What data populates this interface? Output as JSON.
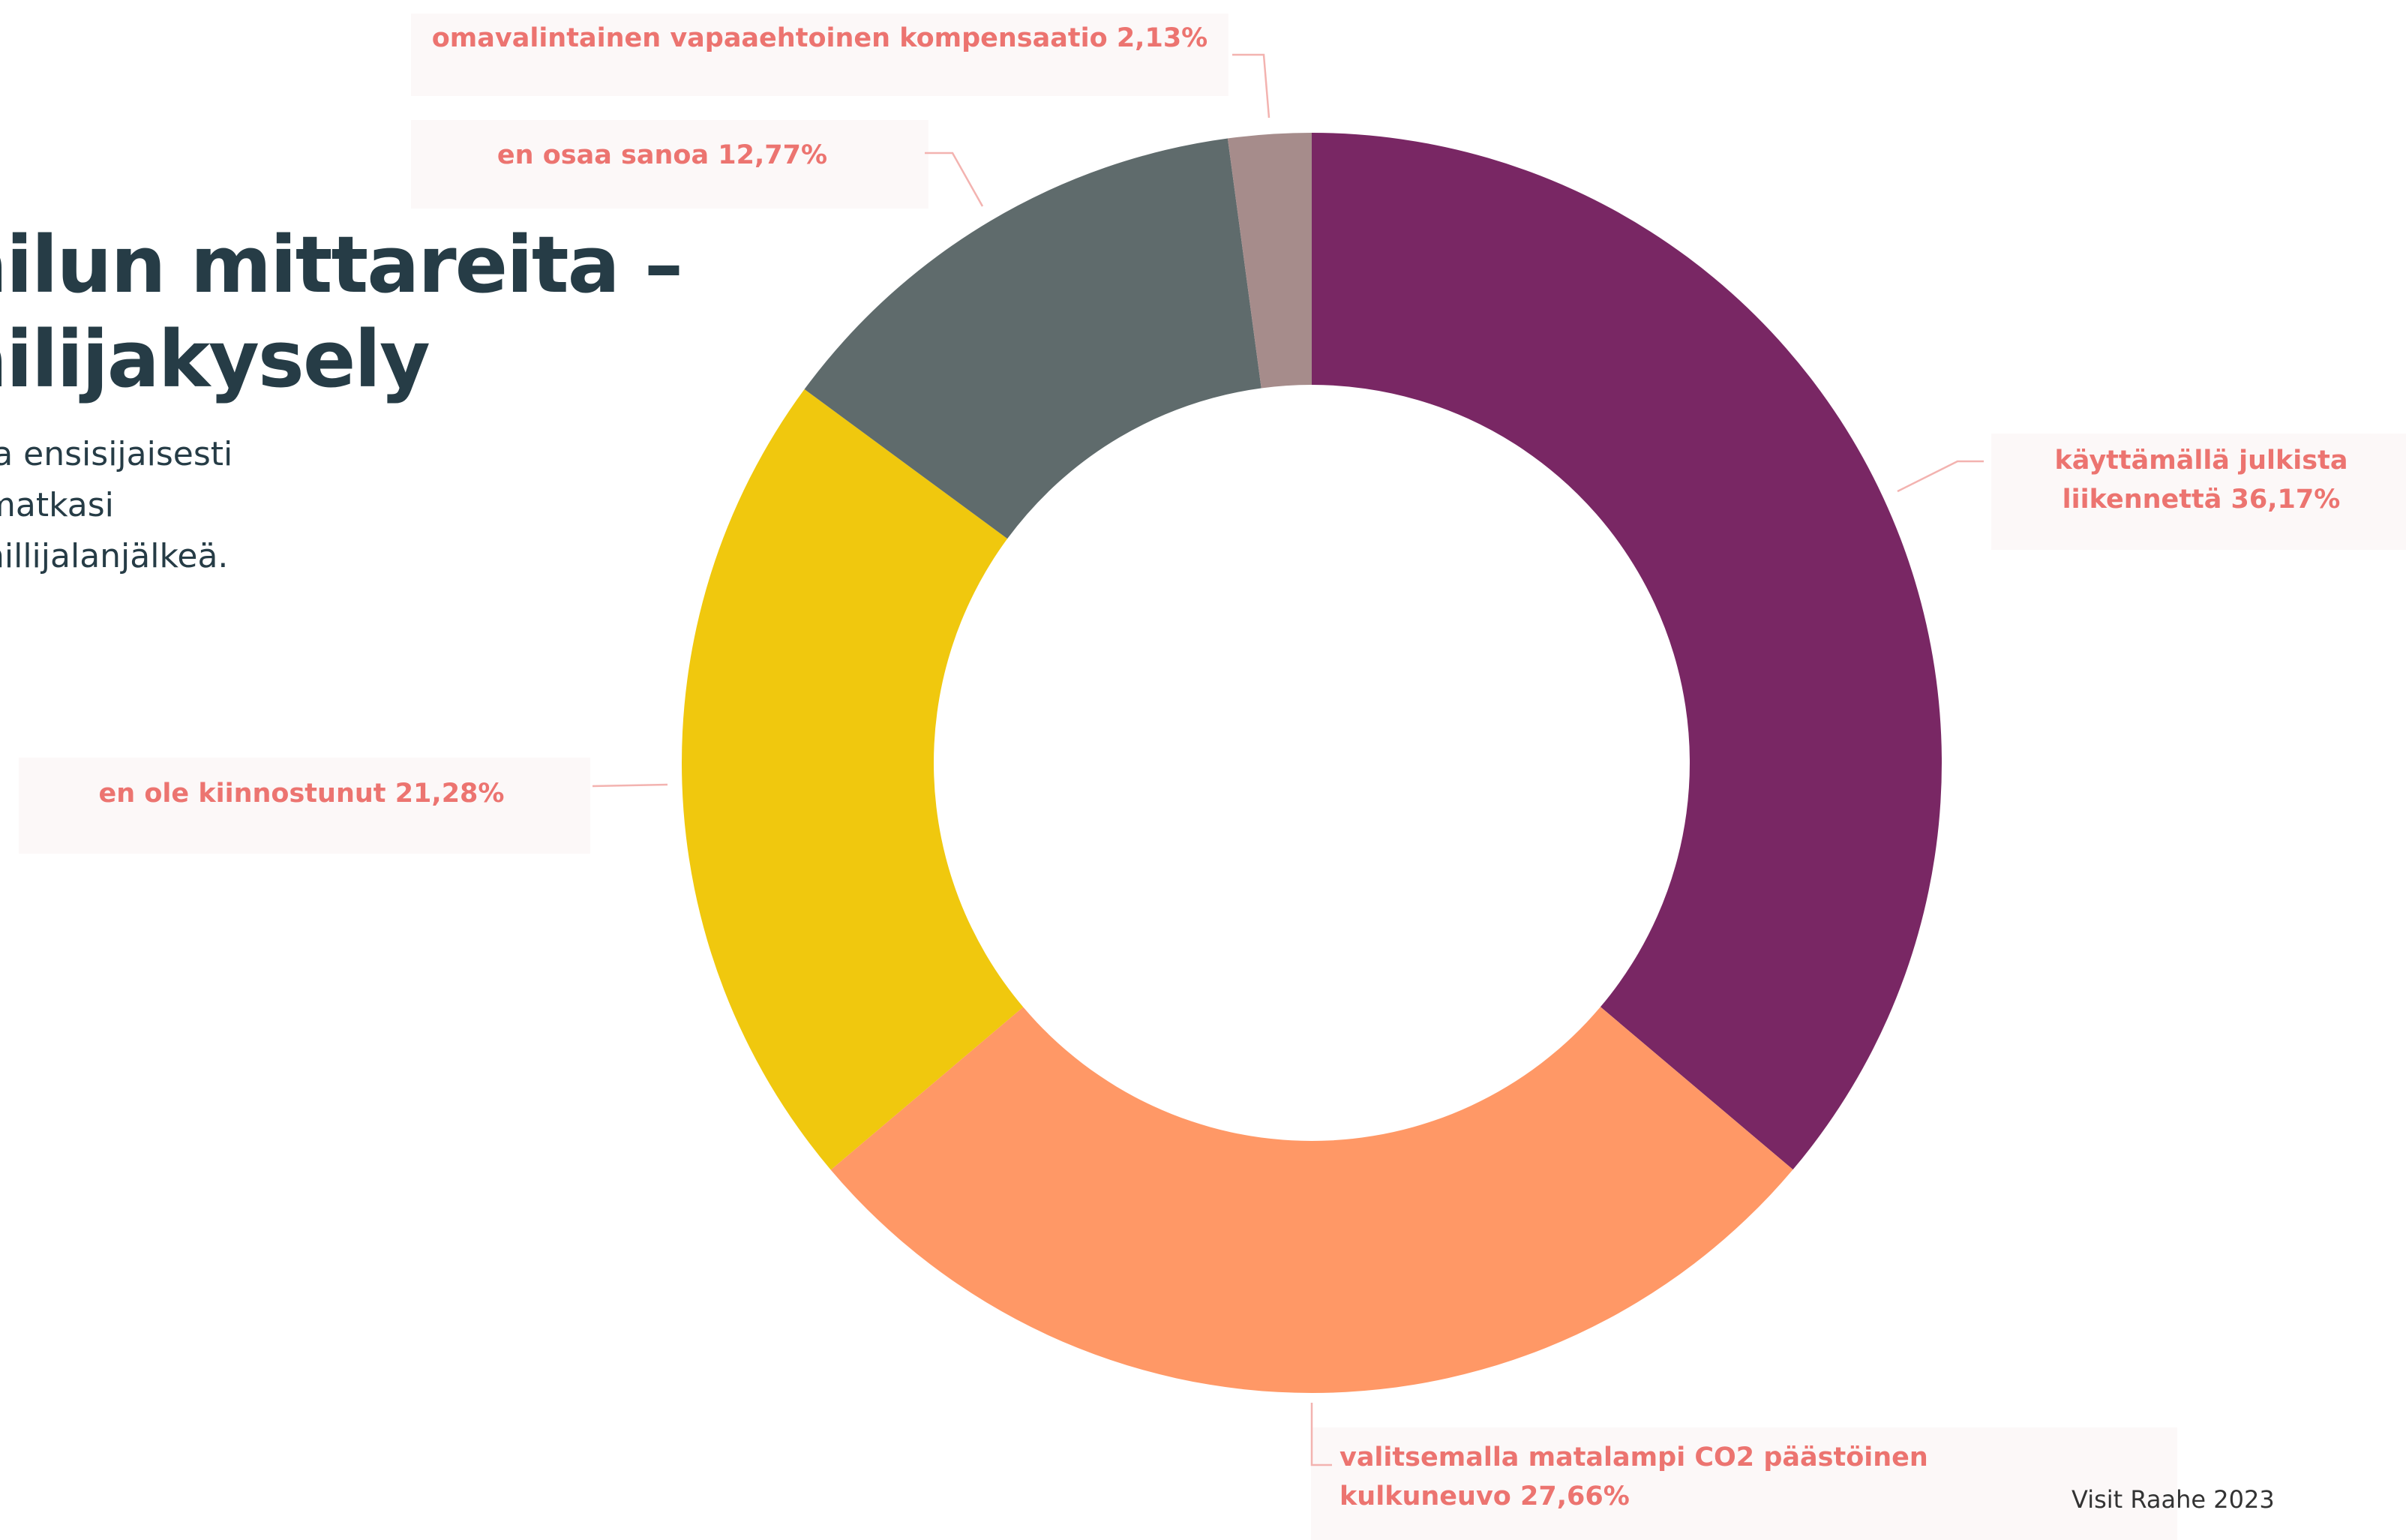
{
  "slide": {
    "title_lines": [
      "ailun mittareita –",
      "ailijakysely"
    ],
    "subtitle_lines": [
      "la ensisijaisesti",
      "matkasi",
      "hillijalanjälkeä."
    ],
    "footer": "Visit Raahe 2023"
  },
  "chart_data": {
    "type": "pie",
    "donut": true,
    "title": "",
    "start": "12 o'clock, clockwise",
    "slices": [
      {
        "label": "käyttämällä julkista liikennettä",
        "value": 36.17,
        "label_lines": [
          "käyttämällä julkista",
          "liikennettä 36,17%"
        ],
        "color": "#792764"
      },
      {
        "label": "valitsemalla matalampi CO2 päästöinen kulkuneuvo",
        "value": 27.66,
        "label_lines": [
          "valitsemalla matalampi CO2 päästöinen",
          "kulkuneuvo 27,66%"
        ],
        "color": "#ff9866"
      },
      {
        "label": "en ole kiinnostunut",
        "value": 21.28,
        "label_lines": [
          "en ole kiinnostunut 21,28%"
        ],
        "color": "#f0c80e"
      },
      {
        "label": "en osaa sanoa",
        "value": 12.77,
        "label_lines": [
          "en osaa sanoa 12,77%"
        ],
        "color": "#5f6b6c"
      },
      {
        "label": "omavalintainen vapaaehtoinen kompensaatio",
        "value": 2.13,
        "label_lines": [
          "omavalintainen vapaaehtoinen kompensaatio 2,13%"
        ],
        "color": "#a68c8b"
      }
    ]
  }
}
